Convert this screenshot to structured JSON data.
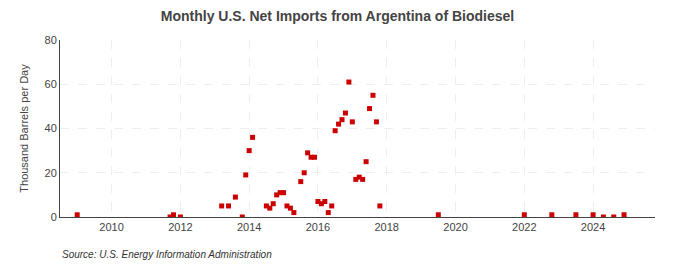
{
  "chart_data": {
    "type": "scatter",
    "title": "Monthly U.S. Net Imports from Argentina of Biodiesel",
    "ylabel": "Thousand Barrels per Day",
    "annotation": "Source: U.S. Energy Information Administration",
    "color": "#cc0000",
    "marker": "square",
    "grid": true,
    "xlim": [
      2008.5,
      2025.8
    ],
    "xticks": [
      2010,
      2012,
      2014,
      2016,
      2018,
      2020,
      2022,
      2024
    ],
    "ylim": [
      0,
      80
    ],
    "yticks": [
      0,
      20,
      40,
      60,
      80
    ],
    "x": [
      2009.0,
      2011.7,
      2011.8,
      2012.0,
      2013.2,
      2013.4,
      2013.6,
      2013.8,
      2013.9,
      2014.0,
      2014.1,
      2014.5,
      2014.6,
      2014.7,
      2014.8,
      2014.9,
      2015.0,
      2015.1,
      2015.2,
      2015.3,
      2015.5,
      2015.6,
      2015.7,
      2015.8,
      2015.9,
      2016.0,
      2016.1,
      2016.2,
      2016.3,
      2016.4,
      2016.5,
      2016.6,
      2016.7,
      2016.8,
      2016.9,
      2017.0,
      2017.1,
      2017.2,
      2017.3,
      2017.4,
      2017.5,
      2017.6,
      2017.7,
      2017.8,
      2019.5,
      2022.0,
      2022.8,
      2023.5,
      2024.0,
      2024.3,
      2024.6,
      2024.9
    ],
    "values": [
      1,
      0,
      1,
      0,
      5,
      5,
      9,
      0,
      19,
      30,
      36,
      5,
      4,
      6,
      10,
      11,
      11,
      5,
      4,
      2,
      16,
      20,
      29,
      27,
      27,
      7,
      6,
      7,
      2,
      5,
      39,
      42,
      44,
      47,
      61,
      43,
      17,
      18,
      17,
      25,
      49,
      55,
      43,
      5,
      1,
      1,
      1,
      1,
      1,
      0,
      0,
      1
    ]
  }
}
